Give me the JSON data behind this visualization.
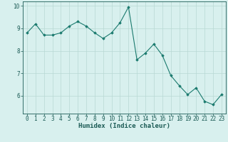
{
  "x": [
    0,
    1,
    2,
    3,
    4,
    5,
    6,
    7,
    8,
    9,
    10,
    11,
    12,
    13,
    14,
    15,
    16,
    17,
    18,
    19,
    20,
    21,
    22,
    23
  ],
  "y": [
    8.8,
    9.2,
    8.7,
    8.7,
    8.8,
    9.1,
    9.3,
    9.1,
    8.8,
    8.55,
    8.8,
    9.25,
    9.95,
    7.6,
    7.9,
    8.3,
    7.8,
    6.9,
    6.45,
    6.05,
    6.35,
    5.75,
    5.6,
    6.05
  ],
  "line_color": "#1a7a6e",
  "marker": "D",
  "marker_size": 1.8,
  "bg_color": "#d8f0ee",
  "grid_color": "#b8d8d4",
  "xlabel": "Humidex (Indice chaleur)",
  "xlabel_color": "#1a5a54",
  "tick_color": "#1a5a54",
  "ylim": [
    5.2,
    10.2
  ],
  "xlim": [
    -0.5,
    23.5
  ],
  "yticks": [
    6,
    7,
    8,
    9,
    10
  ],
  "xticks": [
    0,
    1,
    2,
    3,
    4,
    5,
    6,
    7,
    8,
    9,
    10,
    11,
    12,
    13,
    14,
    15,
    16,
    17,
    18,
    19,
    20,
    21,
    22,
    23
  ],
  "font_size_label": 6.5,
  "font_size_tick": 5.5,
  "line_width": 0.8
}
